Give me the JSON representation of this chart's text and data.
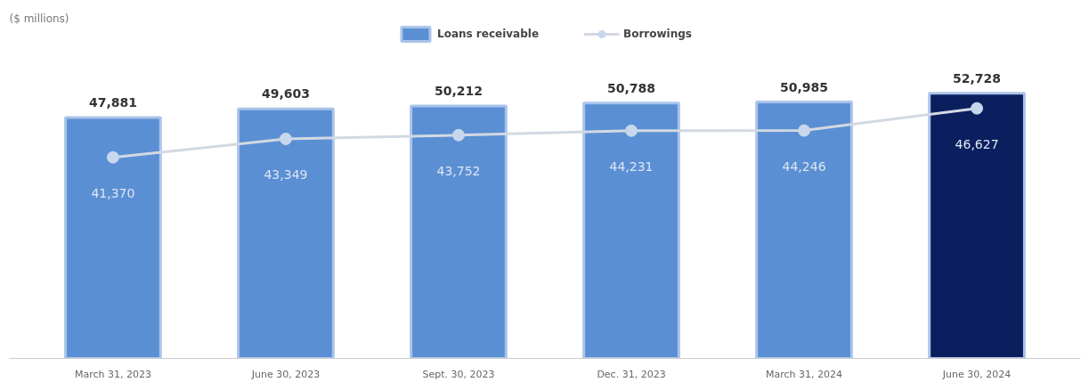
{
  "chart_data": {
    "type": "bar",
    "annotations": [
      "($ millions)"
    ],
    "categories": [
      "March 31, 2023",
      "June 30, 2023",
      "Sept. 30, 2023",
      "Dec. 31, 2023",
      "March 31, 2024",
      "June 30, 2024"
    ],
    "series": [
      {
        "name": "Loans receivable",
        "colors": [
          "#5a8fd3",
          "#5a8fd3",
          "#5a8fd3",
          "#5a8fd3",
          "#5a8fd3",
          "#0b1f5e"
        ],
        "values": [
          47881,
          49603,
          50212,
          50788,
          50985,
          52728
        ],
        "value_labels": [
          "47,881",
          "49,603",
          "50,212",
          "50,788",
          "50,985",
          "52,728"
        ]
      },
      {
        "name": "Borrowings",
        "type": "line",
        "axis": "y2",
        "color": "#d3d9e2",
        "marker": "circle",
        "values": [
          41370,
          43349,
          43752,
          44231,
          44246,
          46627
        ],
        "value_labels": [
          "41,370",
          "43,349",
          "43,752",
          "44,231",
          "44,246",
          "46,627"
        ]
      }
    ],
    "legend": "top",
    "tick_labels": "x"
  }
}
